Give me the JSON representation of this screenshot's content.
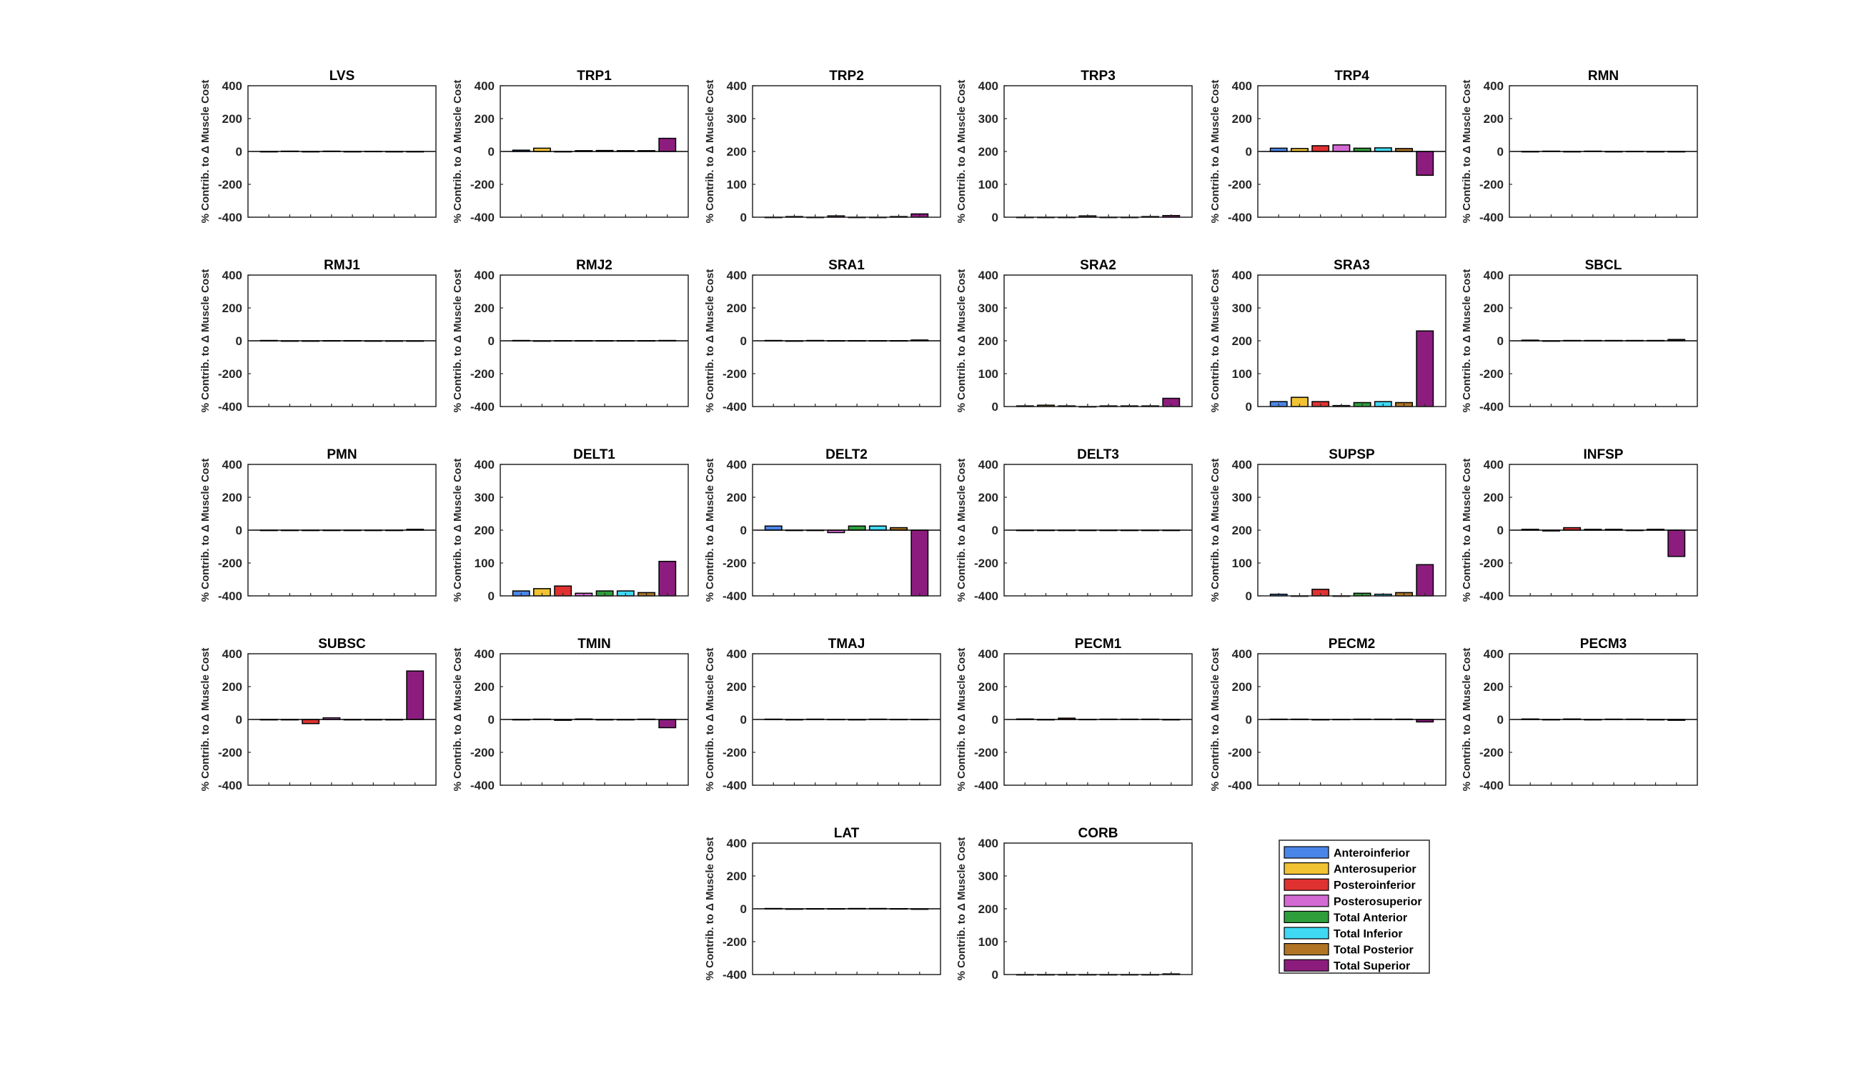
{
  "figure": {
    "ylabel": "% Contrib. to Δ Muscle Cost"
  },
  "legend": {
    "entries": [
      {
        "name": "Anteroinferior",
        "color": "#4a86e8"
      },
      {
        "name": "Anterosuperior",
        "color": "#f1c232"
      },
      {
        "name": "Posteroinferior",
        "color": "#e03131"
      },
      {
        "name": "Posterosuperior",
        "color": "#d36ad3"
      },
      {
        "name": "Total Anterior",
        "color": "#2e9e3c"
      },
      {
        "name": "Total Inferior",
        "color": "#3fd9f5"
      },
      {
        "name": "Total Posterior",
        "color": "#b07424"
      },
      {
        "name": "Total Superior",
        "color": "#8c1d7e"
      }
    ]
  },
  "chart_data": [
    {
      "type": "bar",
      "title": "LVS",
      "ylim": [
        -400,
        400
      ],
      "yticks": [
        -400,
        -200,
        0,
        200,
        400
      ],
      "values": [
        0,
        2,
        0,
        2,
        0,
        1,
        0,
        0
      ]
    },
    {
      "type": "bar",
      "title": "TRP1",
      "ylim": [
        -400,
        400
      ],
      "yticks": [
        -400,
        -200,
        0,
        200,
        400
      ],
      "values": [
        8,
        20,
        0,
        5,
        6,
        5,
        5,
        80
      ]
    },
    {
      "type": "bar",
      "title": "TRP2",
      "ylim": [
        0,
        400
      ],
      "yticks": [
        0,
        100,
        200,
        300,
        400
      ],
      "values": [
        0,
        2,
        0,
        4,
        0,
        0,
        2,
        10
      ]
    },
    {
      "type": "bar",
      "title": "TRP3",
      "ylim": [
        0,
        400
      ],
      "yticks": [
        0,
        100,
        200,
        300,
        400
      ],
      "values": [
        0,
        0,
        0,
        4,
        0,
        0,
        2,
        5
      ]
    },
    {
      "type": "bar",
      "title": "TRP4",
      "ylim": [
        -400,
        400
      ],
      "yticks": [
        -400,
        -200,
        0,
        200,
        400
      ],
      "values": [
        20,
        18,
        35,
        40,
        20,
        22,
        18,
        -145
      ]
    },
    {
      "type": "bar",
      "title": "RMN",
      "ylim": [
        -400,
        400
      ],
      "yticks": [
        -400,
        -200,
        0,
        200,
        400
      ],
      "values": [
        0,
        2,
        0,
        2,
        0,
        1,
        0,
        0
      ]
    },
    {
      "type": "bar",
      "title": "RMJ1",
      "ylim": [
        -400,
        400
      ],
      "yticks": [
        -400,
        -200,
        0,
        200,
        400
      ],
      "values": [
        2,
        0,
        -2,
        1,
        1,
        0,
        0,
        0
      ]
    },
    {
      "type": "bar",
      "title": "RMJ2",
      "ylim": [
        -400,
        400
      ],
      "yticks": [
        -400,
        -200,
        0,
        200,
        400
      ],
      "values": [
        2,
        0,
        1,
        1,
        1,
        1,
        1,
        2
      ]
    },
    {
      "type": "bar",
      "title": "SRA1",
      "ylim": [
        -400,
        400
      ],
      "yticks": [
        -400,
        -200,
        0,
        200,
        400
      ],
      "values": [
        2,
        0,
        2,
        1,
        1,
        1,
        1,
        5
      ]
    },
    {
      "type": "bar",
      "title": "SRA2",
      "ylim": [
        0,
        400
      ],
      "yticks": [
        0,
        100,
        200,
        300,
        400
      ],
      "values": [
        2,
        4,
        2,
        0,
        2,
        2,
        2,
        25
      ]
    },
    {
      "type": "bar",
      "title": "SRA3",
      "ylim": [
        0,
        400
      ],
      "yticks": [
        0,
        100,
        200,
        300,
        400
      ],
      "values": [
        15,
        28,
        15,
        3,
        12,
        15,
        12,
        230
      ]
    },
    {
      "type": "bar",
      "title": "SBCL",
      "ylim": [
        -400,
        400
      ],
      "yticks": [
        -400,
        -200,
        0,
        200,
        400
      ],
      "values": [
        4,
        -2,
        2,
        2,
        2,
        2,
        2,
        8
      ]
    },
    {
      "type": "bar",
      "title": "PMN",
      "ylim": [
        -400,
        400
      ],
      "yticks": [
        -400,
        -200,
        0,
        200,
        400
      ],
      "values": [
        0,
        0,
        0,
        0,
        0,
        0,
        0,
        5
      ]
    },
    {
      "type": "bar",
      "title": "DELT1",
      "ylim": [
        0,
        400
      ],
      "yticks": [
        0,
        100,
        200,
        300,
        400
      ],
      "values": [
        15,
        22,
        30,
        8,
        15,
        15,
        10,
        105
      ]
    },
    {
      "type": "bar",
      "title": "DELT2",
      "ylim": [
        -400,
        400
      ],
      "yticks": [
        -400,
        -200,
        0,
        200,
        400
      ],
      "values": [
        25,
        0,
        0,
        -15,
        25,
        25,
        15,
        -400
      ]
    },
    {
      "type": "bar",
      "title": "DELT3",
      "ylim": [
        -400,
        400
      ],
      "yticks": [
        -400,
        -200,
        0,
        200,
        400
      ],
      "values": [
        0,
        0,
        0,
        0,
        0,
        0,
        0,
        0
      ]
    },
    {
      "type": "bar",
      "title": "SUPSP",
      "ylim": [
        0,
        400
      ],
      "yticks": [
        0,
        100,
        200,
        300,
        400
      ],
      "values": [
        5,
        0,
        20,
        0,
        8,
        5,
        10,
        95
      ]
    },
    {
      "type": "bar",
      "title": "INFSP",
      "ylim": [
        -400,
        400
      ],
      "yticks": [
        -400,
        -200,
        0,
        200,
        400
      ],
      "values": [
        5,
        -5,
        15,
        5,
        5,
        0,
        5,
        -160
      ]
    },
    {
      "type": "bar",
      "title": "SUBSC",
      "ylim": [
        -400,
        400
      ],
      "yticks": [
        -400,
        -200,
        0,
        200,
        400
      ],
      "values": [
        0,
        0,
        -25,
        10,
        0,
        0,
        0,
        295
      ]
    },
    {
      "type": "bar",
      "title": "TMIN",
      "ylim": [
        -400,
        400
      ],
      "yticks": [
        -400,
        -200,
        0,
        200,
        400
      ],
      "values": [
        0,
        2,
        -5,
        3,
        0,
        0,
        2,
        -50
      ]
    },
    {
      "type": "bar",
      "title": "TMAJ",
      "ylim": [
        -400,
        400
      ],
      "yticks": [
        -400,
        -200,
        0,
        200,
        400
      ],
      "values": [
        2,
        0,
        2,
        1,
        0,
        2,
        1,
        1
      ]
    },
    {
      "type": "bar",
      "title": "PECM1",
      "ylim": [
        -400,
        400
      ],
      "yticks": [
        -400,
        -200,
        0,
        200,
        400
      ],
      "values": [
        3,
        0,
        8,
        1,
        2,
        2,
        2,
        0
      ]
    },
    {
      "type": "bar",
      "title": "PECM2",
      "ylim": [
        -400,
        400
      ],
      "yticks": [
        -400,
        -200,
        0,
        200,
        400
      ],
      "values": [
        2,
        2,
        0,
        1,
        2,
        2,
        2,
        -15
      ]
    },
    {
      "type": "bar",
      "title": "PECM3",
      "ylim": [
        -400,
        400
      ],
      "yticks": [
        -400,
        -200,
        0,
        200,
        400
      ],
      "values": [
        3,
        0,
        3,
        0,
        2,
        2,
        0,
        -5
      ]
    },
    {
      "type": "bar",
      "title": "LAT",
      "ylim": [
        -400,
        400
      ],
      "yticks": [
        -400,
        -200,
        0,
        200,
        400
      ],
      "values": [
        2,
        0,
        1,
        1,
        2,
        2,
        1,
        -3
      ]
    },
    {
      "type": "bar",
      "title": "CORB",
      "ylim": [
        0,
        400
      ],
      "yticks": [
        0,
        100,
        200,
        300,
        400
      ],
      "values": [
        0,
        0,
        0,
        0,
        0,
        0,
        0,
        2
      ]
    }
  ]
}
